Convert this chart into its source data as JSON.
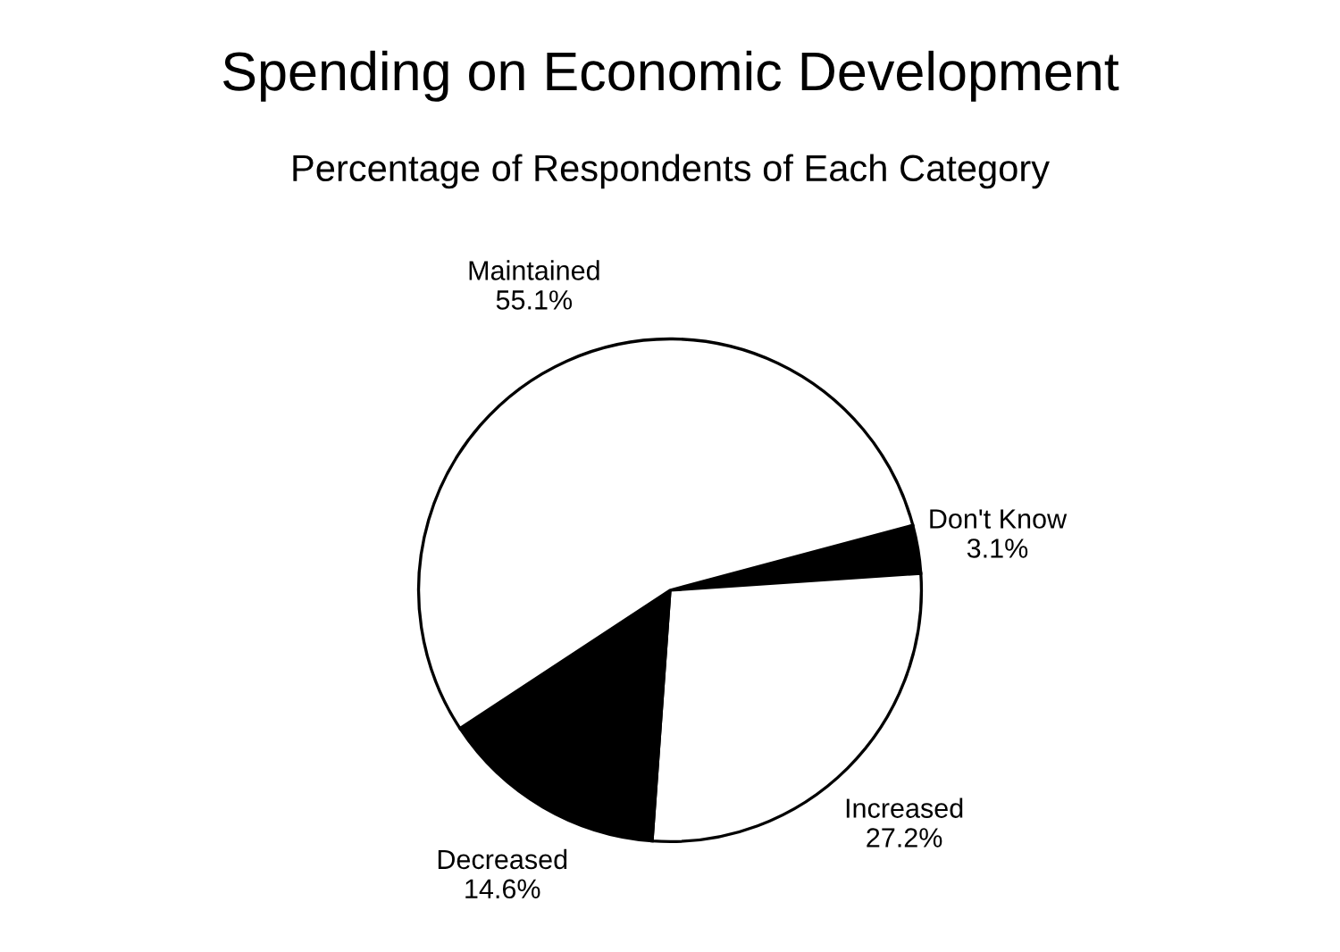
{
  "chart_data": {
    "type": "pie",
    "title": "Spending on Economic Development",
    "subtitle": "Percentage of Respondents of Each Category",
    "categories": [
      "Don't Know",
      "Increased",
      "Decreased",
      "Maintained"
    ],
    "values": [
      3.1,
      27.2,
      14.6,
      55.1
    ],
    "value_labels": [
      "3.1%",
      "27.2%",
      "14.6%",
      "55.1%"
    ],
    "colors": [
      "#000000",
      "#ffffff",
      "#000000",
      "#ffffff"
    ],
    "legend": false
  }
}
